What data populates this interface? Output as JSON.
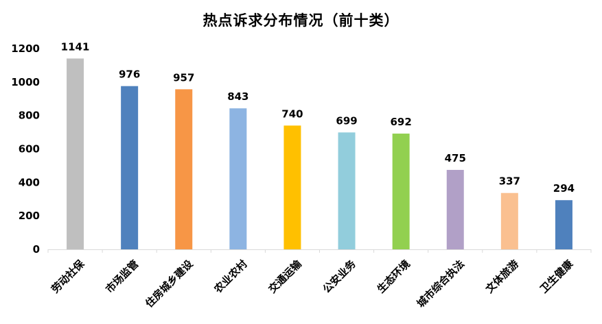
{
  "chart_data": {
    "type": "bar",
    "title": "热点诉求分布情况（前十类）",
    "xlabel": "",
    "ylabel": "",
    "categories": [
      "劳动社保",
      "市场监管",
      "住房城乡建设",
      "农业农村",
      "交通运输",
      "公安业务",
      "生态环境",
      "城市综合执法",
      "文体旅游",
      "卫生健康"
    ],
    "values": [
      1141,
      976,
      957,
      843,
      740,
      699,
      692,
      475,
      337,
      294
    ],
    "colors": [
      "#BFBFBF",
      "#4F81BD",
      "#F79646",
      "#8DB4E2",
      "#FFC000",
      "#92CDDC",
      "#92D050",
      "#B1A0C7",
      "#FAC090",
      "#4F81BD"
    ],
    "ylim": [
      0,
      1200
    ],
    "yticks": [
      0,
      200,
      400,
      600,
      800,
      1000,
      1200
    ],
    "grid": false,
    "legend": "none",
    "data_labels": true
  }
}
